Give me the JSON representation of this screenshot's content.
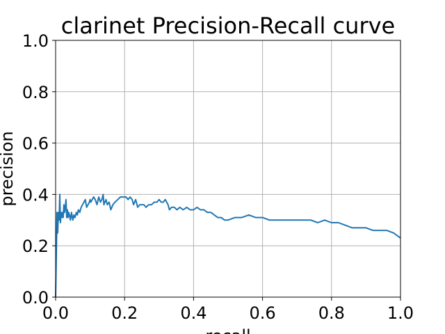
{
  "chart_data": {
    "type": "line",
    "title": "clarinet Precision-Recall curve",
    "xlabel": "recall",
    "ylabel": "precision",
    "xlim": [
      0.0,
      1.0
    ],
    "ylim": [
      0.0,
      1.0
    ],
    "xticks": [
      "0.0",
      "0.2",
      "0.4",
      "0.6",
      "0.8",
      "1.0"
    ],
    "yticks": [
      "0.0",
      "0.2",
      "0.4",
      "0.6",
      "0.8",
      "1.0"
    ],
    "grid": true,
    "colors": {
      "series": "#1f77b4"
    },
    "series": [
      {
        "x": [
          0.0,
          0.004,
          0.006,
          0.008,
          0.01,
          0.012,
          0.014,
          0.016,
          0.018,
          0.02,
          0.022,
          0.024,
          0.026,
          0.028,
          0.03,
          0.032,
          0.034,
          0.036,
          0.038,
          0.04,
          0.043,
          0.046,
          0.05,
          0.053,
          0.056,
          0.06,
          0.063,
          0.066,
          0.07,
          0.074,
          0.078,
          0.082,
          0.086,
          0.09,
          0.094,
          0.098,
          0.1,
          0.102,
          0.106,
          0.11,
          0.115,
          0.12,
          0.125,
          0.13,
          0.134,
          0.138,
          0.14,
          0.143,
          0.146,
          0.15,
          0.155,
          0.16,
          0.166,
          0.172,
          0.18,
          0.188,
          0.196,
          0.204,
          0.21,
          0.216,
          0.222,
          0.226,
          0.232,
          0.238,
          0.244,
          0.25,
          0.256,
          0.262,
          0.27,
          0.278,
          0.286,
          0.294,
          0.3,
          0.306,
          0.312,
          0.318,
          0.322,
          0.326,
          0.33,
          0.336,
          0.344,
          0.352,
          0.36,
          0.37,
          0.38,
          0.39,
          0.4,
          0.41,
          0.42,
          0.43,
          0.44,
          0.45,
          0.46,
          0.47,
          0.48,
          0.49,
          0.5,
          0.52,
          0.54,
          0.56,
          0.58,
          0.6,
          0.62,
          0.64,
          0.66,
          0.68,
          0.7,
          0.72,
          0.74,
          0.76,
          0.78,
          0.8,
          0.82,
          0.84,
          0.86,
          0.88,
          0.9,
          0.92,
          0.94,
          0.96,
          0.98,
          0.99,
          1.0
        ],
        "y": [
          0.0,
          0.33,
          0.25,
          0.33,
          0.3,
          0.4,
          0.29,
          0.33,
          0.31,
          0.33,
          0.31,
          0.36,
          0.33,
          0.35,
          0.38,
          0.31,
          0.34,
          0.31,
          0.33,
          0.32,
          0.3,
          0.33,
          0.3,
          0.32,
          0.31,
          0.33,
          0.32,
          0.34,
          0.33,
          0.35,
          0.36,
          0.37,
          0.38,
          0.35,
          0.36,
          0.37,
          0.38,
          0.37,
          0.38,
          0.39,
          0.38,
          0.36,
          0.39,
          0.37,
          0.38,
          0.4,
          0.36,
          0.37,
          0.38,
          0.36,
          0.37,
          0.34,
          0.36,
          0.37,
          0.38,
          0.39,
          0.39,
          0.39,
          0.38,
          0.39,
          0.38,
          0.36,
          0.38,
          0.35,
          0.36,
          0.36,
          0.36,
          0.35,
          0.36,
          0.36,
          0.37,
          0.37,
          0.38,
          0.37,
          0.37,
          0.38,
          0.37,
          0.36,
          0.34,
          0.35,
          0.35,
          0.34,
          0.35,
          0.34,
          0.35,
          0.34,
          0.34,
          0.35,
          0.34,
          0.34,
          0.33,
          0.33,
          0.32,
          0.31,
          0.31,
          0.3,
          0.3,
          0.31,
          0.31,
          0.32,
          0.31,
          0.31,
          0.3,
          0.3,
          0.3,
          0.3,
          0.3,
          0.3,
          0.3,
          0.29,
          0.3,
          0.29,
          0.29,
          0.28,
          0.27,
          0.27,
          0.27,
          0.26,
          0.26,
          0.26,
          0.25,
          0.24,
          0.23
        ]
      }
    ]
  }
}
